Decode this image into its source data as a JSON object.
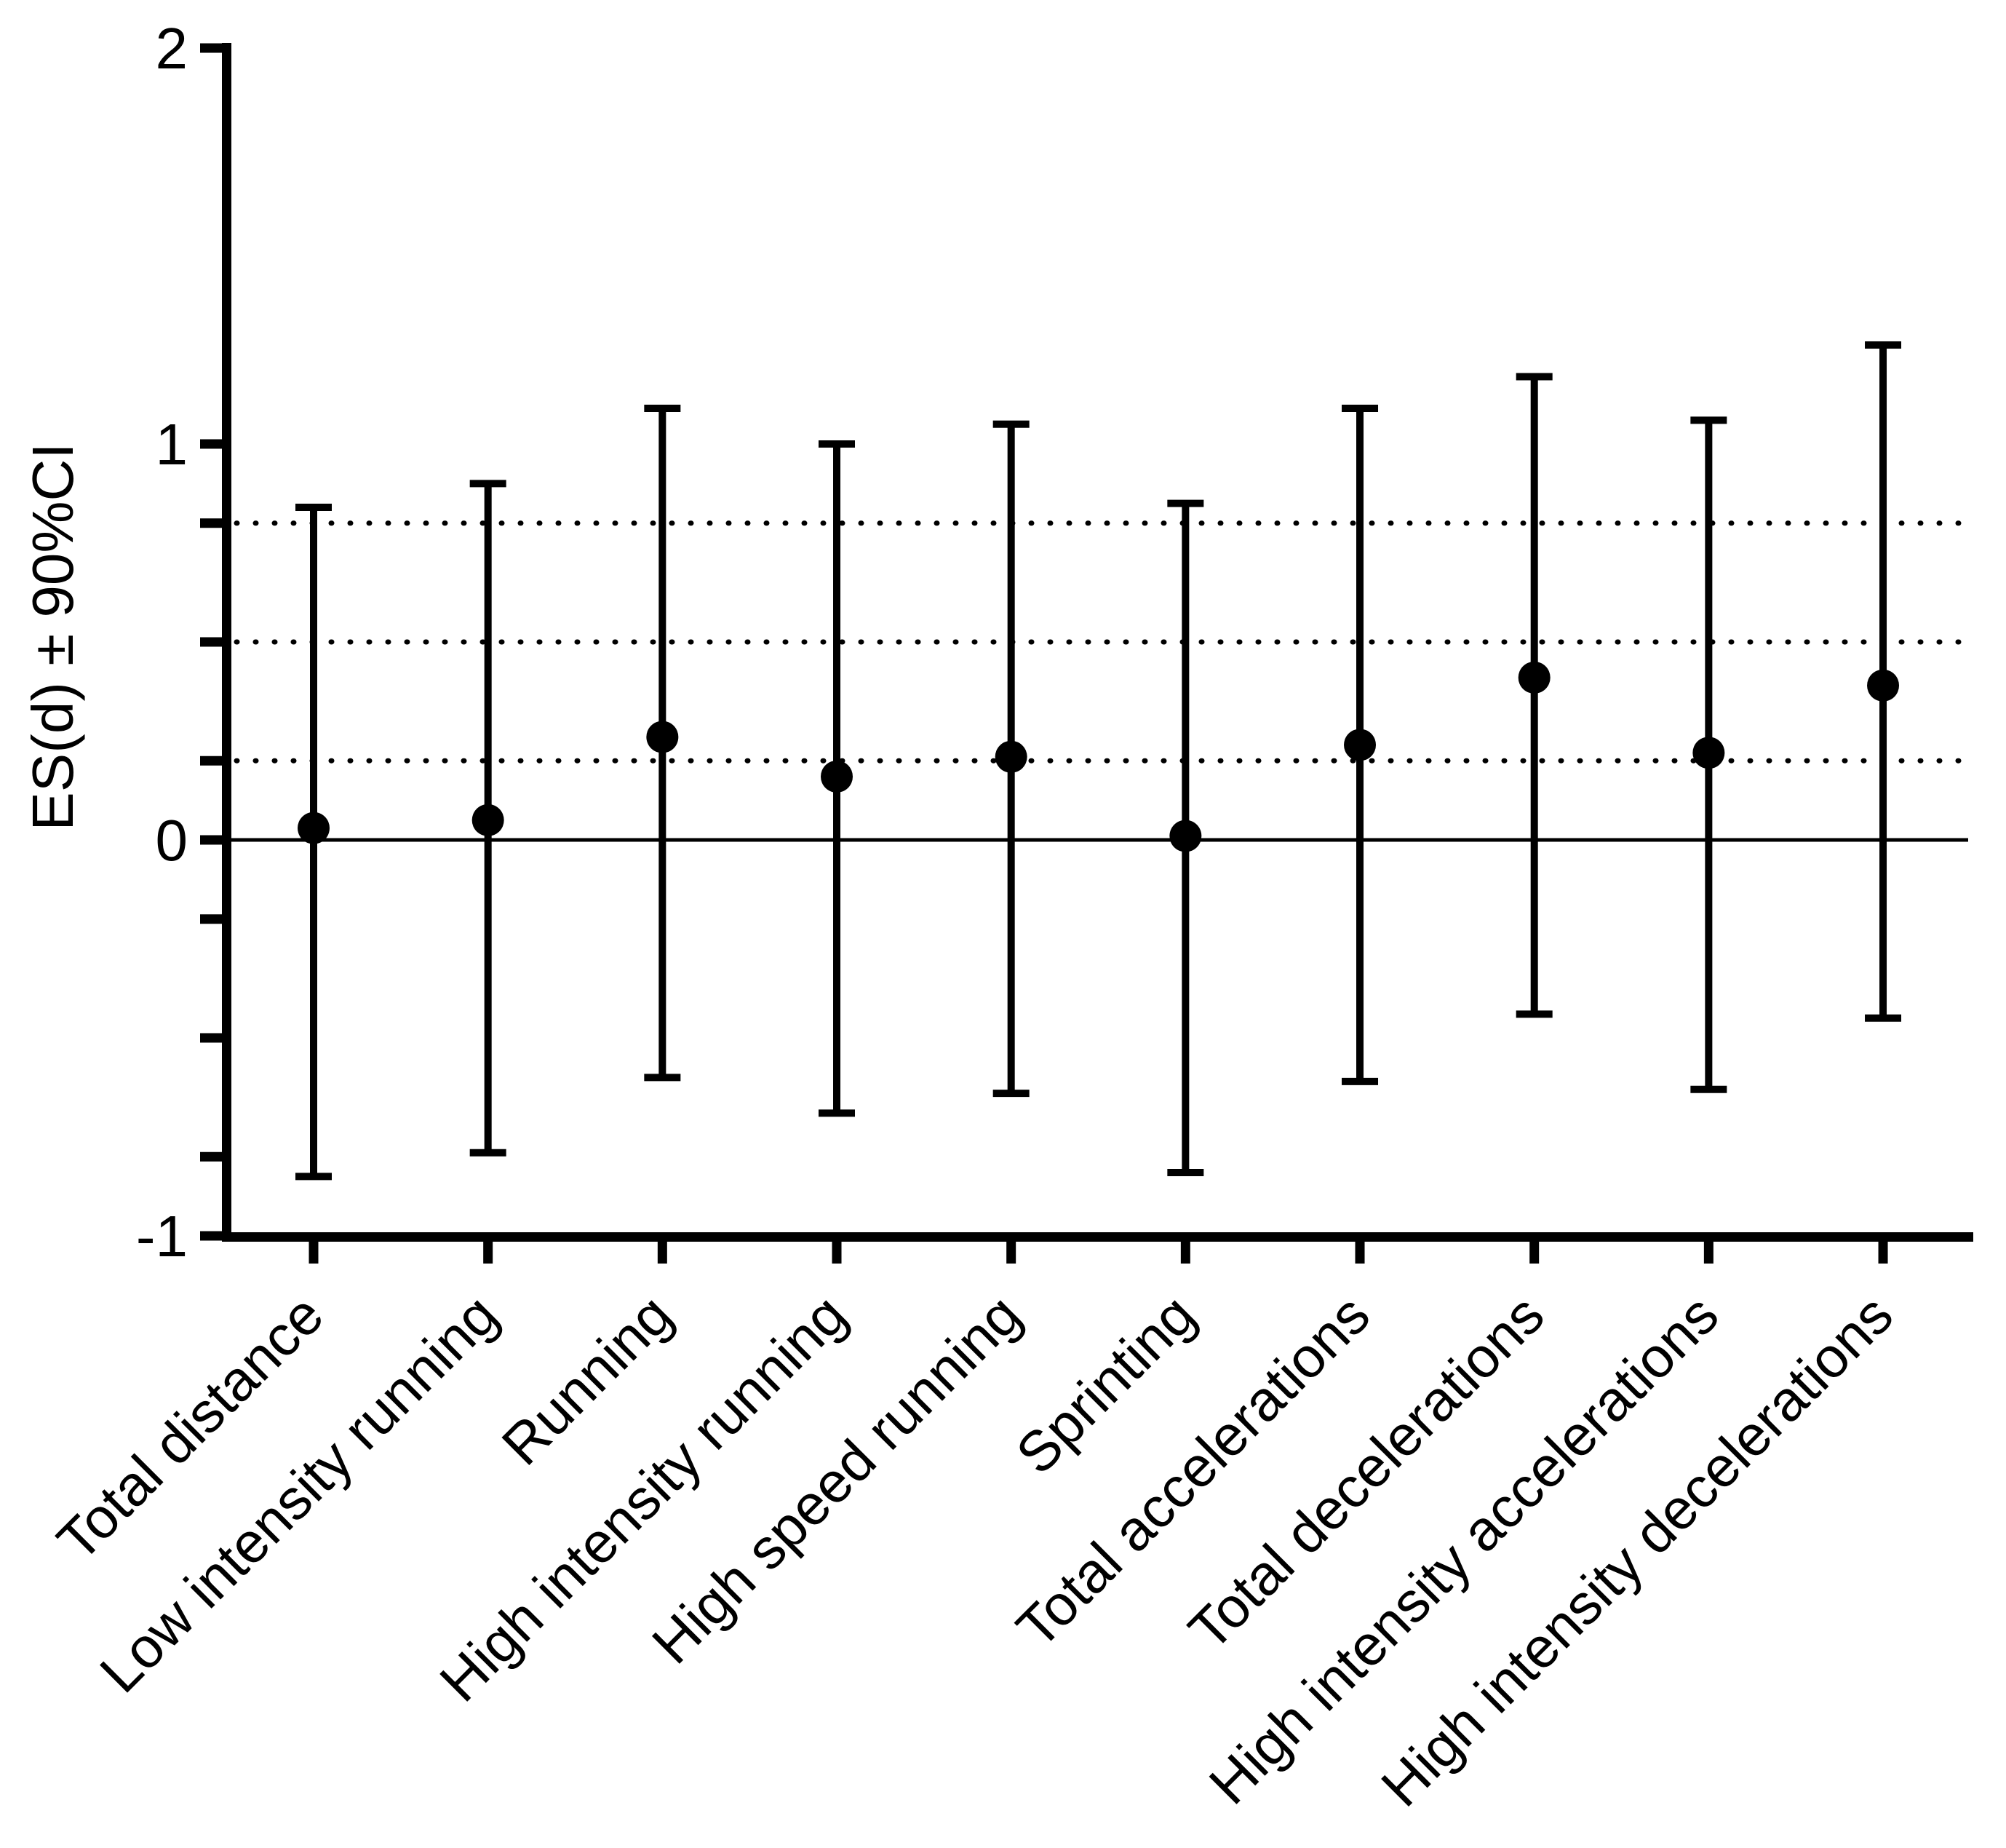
{
  "chart_data": {
    "type": "scatter",
    "subtype": "forest-plot-effect-sizes-with-error-bars",
    "title": "",
    "xlabel": "",
    "ylabel": "ES(d) ± 90%CI",
    "ylim": [
      -1,
      2
    ],
    "grid": false,
    "legend_position": "none",
    "y_major_ticks": [
      {
        "value": 2,
        "label": "2"
      },
      {
        "value": 1,
        "label": "1"
      },
      {
        "value": 0,
        "label": "0"
      },
      {
        "value": -1,
        "label": "-1"
      }
    ],
    "y_minor_ticks": [
      0.8,
      0.5,
      0.2,
      -0.2,
      -0.5,
      -0.8
    ],
    "reference_lines": {
      "solid_line_at": 0,
      "dotted_threshold_lines_at": [
        0.2,
        0.5,
        0.8
      ]
    },
    "categories": [
      "Total distance",
      "Low intensity running",
      "Running",
      "High intensity running",
      "High speed running",
      "Sprinting",
      "Total accelerations",
      "Total decelerations",
      "High intensity accelerations",
      "High intensity decelerations"
    ],
    "series": [
      {
        "name": "ES(d) ± 90%CI",
        "means": [
          0.03,
          0.05,
          0.26,
          0.16,
          0.21,
          0.01,
          0.24,
          0.41,
          0.22,
          0.39
        ],
        "ci_upper": [
          0.84,
          0.9,
          1.09,
          1.0,
          1.05,
          0.85,
          1.09,
          1.17,
          1.06,
          1.25
        ],
        "ci_lower": [
          -0.85,
          -0.79,
          -0.6,
          -0.69,
          -0.64,
          -0.84,
          -0.61,
          -0.44,
          -0.63,
          -0.45
        ]
      }
    ],
    "marker": {
      "shape": "circle",
      "color": "#000000"
    },
    "colors": {
      "ink": "#000000",
      "background": "#ffffff"
    }
  }
}
